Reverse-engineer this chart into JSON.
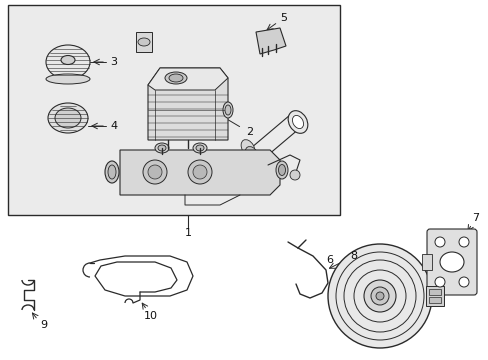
{
  "bg_color": "#ffffff",
  "box_bg": "#ebebeb",
  "line_color": "#2a2a2a",
  "text_color": "#111111",
  "figsize": [
    4.89,
    3.6
  ],
  "dpi": 100
}
